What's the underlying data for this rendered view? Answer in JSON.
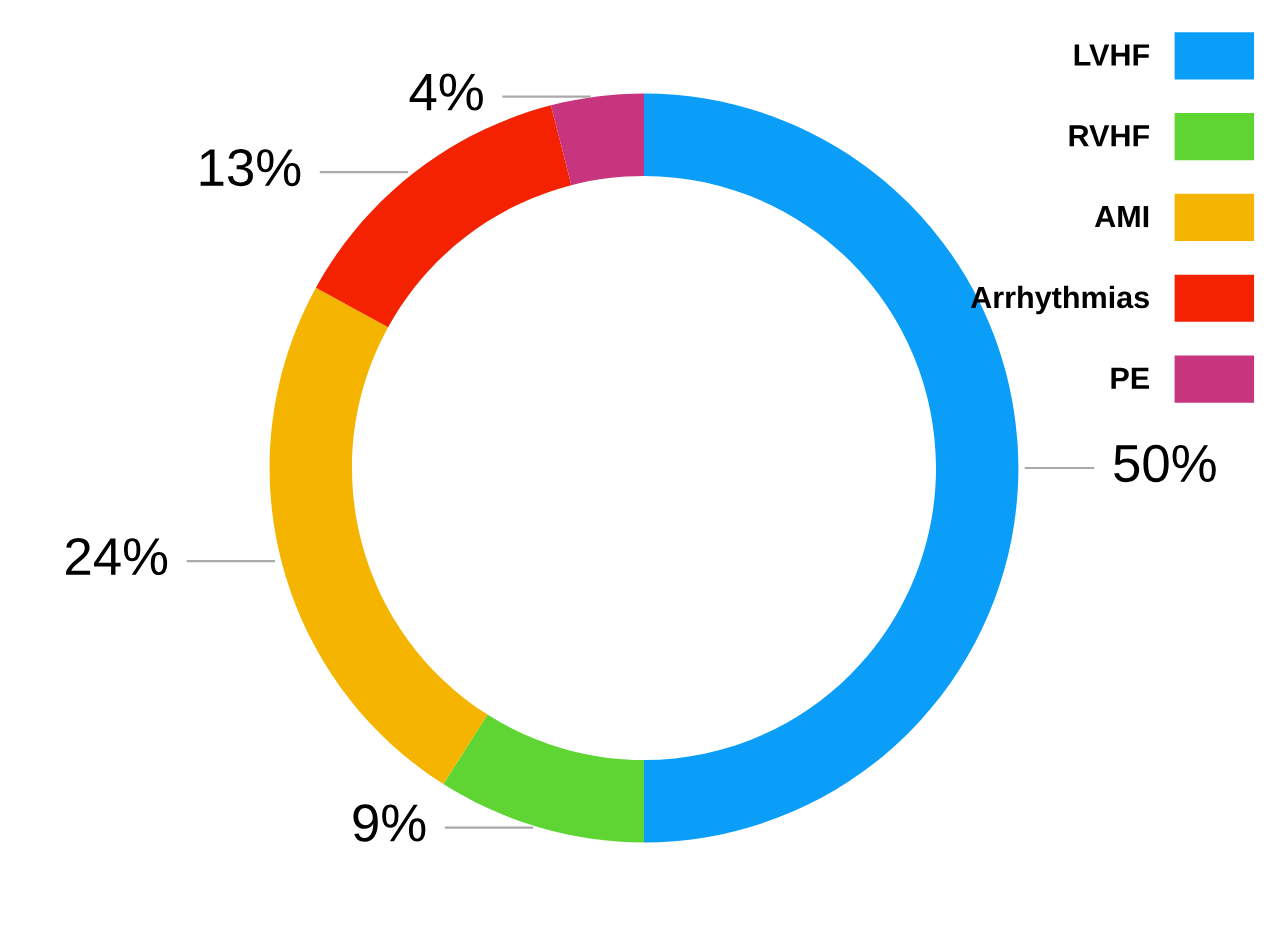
{
  "chart_data": {
    "type": "donut",
    "categories": [
      "LVHF",
      "RVHF",
      "AMI",
      "Arrhythmias",
      "PE"
    ],
    "values": [
      50,
      9,
      24,
      13,
      4
    ],
    "colors": [
      "#0a9ef8",
      "#5fd534",
      "#f5b400",
      "#f42200",
      "#c8357f"
    ],
    "value_labels": [
      "50%",
      "9%",
      "24%",
      "13%",
      "4%"
    ],
    "legend": "top right"
  }
}
